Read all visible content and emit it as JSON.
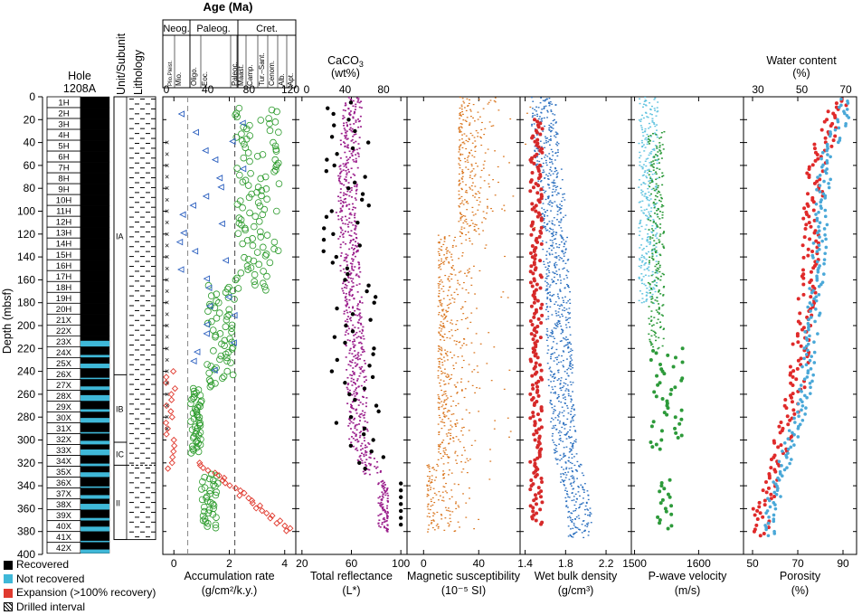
{
  "hole": {
    "title": "Hole",
    "name": "1208A"
  },
  "depth_axis": {
    "label": "Depth (mbsf)",
    "ticks": [
      0,
      20,
      40,
      60,
      80,
      100,
      120,
      140,
      160,
      180,
      200,
      220,
      240,
      260,
      280,
      300,
      320,
      340,
      360,
      380,
      400
    ],
    "ylim": [
      0,
      400
    ]
  },
  "headers": {
    "unit": "Unit/Subunit",
    "lithology": "Lithology",
    "age": "Age (Ma)"
  },
  "cores": [
    "1H",
    "2H",
    "3H",
    "4H",
    "5H",
    "6H",
    "7H",
    "8H",
    "9H",
    "10H",
    "11H",
    "12H",
    "13H",
    "14H",
    "15H",
    "16H",
    "17H",
    "18H",
    "19H",
    "20H",
    "21X",
    "22X",
    "23X",
    "24X",
    "25X",
    "26X",
    "27X",
    "28X",
    "29X",
    "30X",
    "31X",
    "32X",
    "33X",
    "34X",
    "35X",
    "36X",
    "37X",
    "38X",
    "39X",
    "40X",
    "41X",
    "42X"
  ],
  "units": [
    {
      "label": "IA",
      "top": 0,
      "bottom": 243
    },
    {
      "label": "IB",
      "top": 243,
      "bottom": 302
    },
    {
      "label": "IC",
      "top": 302,
      "bottom": 322
    },
    {
      "label": "II",
      "top": 322,
      "bottom": 387
    }
  ],
  "age_scale": {
    "ticks": [
      0,
      40,
      80,
      120
    ],
    "epochs": [
      "Neog.",
      "Paleog.",
      "Cret."
    ],
    "stages": [
      "Plio.Pleist.",
      "Mio.",
      "Oligo.",
      "Eoc.",
      "Paleoc.",
      "Maast.",
      "Camp.",
      "Tur.–Sant.",
      "Cenom.",
      "Alb.",
      "Apt."
    ]
  },
  "caco3": {
    "label_line1": "CaCO",
    "label_sub": "3",
    "label_line2": "(wt%)",
    "ticks": [
      0,
      40,
      80
    ]
  },
  "water": {
    "label_line1": "Water content",
    "label_line2": "(%)",
    "ticks": [
      30,
      50,
      70
    ]
  },
  "legend": [
    {
      "label": "Recovered",
      "color": "#000000"
    },
    {
      "label": "Not recovered",
      "color": "#3fb8d8"
    },
    {
      "label": "Expansion (>100% recovery)",
      "color": "#e03a2f"
    },
    {
      "label": "Drilled interval",
      "color": "hatch"
    }
  ],
  "colors": {
    "caco3": "#000000",
    "reflectance": "#9b1f8c",
    "magsus": "#d9731a",
    "density": "#2a6fbf",
    "velocity": "#2d9a3a",
    "velocity2": "#63c4e0",
    "porosity": "#e02a2a",
    "water": "#4aa8d8",
    "mar": "#2a9a2a",
    "nannofossil": "#2b5fbf"
  },
  "chart_data": [
    {
      "type": "scatter",
      "panel": "accumulation",
      "xlabel": "Accumulation rate",
      "xunit": "(g/cm²/k.y.)",
      "xticks": [
        0.0,
        2.0,
        4.0
      ],
      "xlim": [
        -0.4,
        4.4
      ],
      "series": [
        {
          "values": [
            [
              0.7,
              20
            ],
            [
              0.5,
              60
            ],
            [
              1.5,
              220
            ],
            [
              1.2,
              260
            ],
            [
              0.6,
              275
            ],
            [
              0.8,
              300
            ],
            [
              1.0,
              316
            ],
            [
              2.6,
              327
            ],
            [
              4.0,
              383
            ]
          ]
        }
      ]
    },
    {
      "type": "scatter",
      "panel": "reflectance",
      "xlabel": "Total reflectance",
      "xunit": "(L*)",
      "xticks": [
        20,
        60,
        100
      ],
      "xlim": [
        15,
        105
      ],
      "series": [
        {
          "values": [
            [
              60,
              10
            ],
            [
              55,
              100
            ],
            [
              62,
              200
            ],
            [
              65,
              300
            ],
            [
              90,
              360
            ]
          ]
        }
      ]
    },
    {
      "type": "scatter",
      "panel": "magsus",
      "xlabel": "Magnetic susceptibility",
      "xunit": "(10⁻⁵ SI)",
      "xticks": [
        0,
        40
      ],
      "xlim": [
        -12,
        70
      ],
      "series": [
        {
          "values": [
            [
              15,
              20
            ],
            [
              10,
              120
            ],
            [
              10,
              200
            ],
            [
              8,
              280
            ],
            [
              5,
              360
            ]
          ]
        }
      ]
    },
    {
      "type": "scatter",
      "panel": "density",
      "xlabel": "Wet bulk density",
      "xunit": "(g/cm³)",
      "xticks": [
        1.4,
        1.8,
        2.2
      ],
      "xlim": [
        1.35,
        2.45
      ],
      "series": [
        {
          "values": [
            [
              1.55,
              20
            ],
            [
              1.65,
              100
            ],
            [
              1.7,
              200
            ],
            [
              1.75,
              300
            ],
            [
              1.9,
              360
            ]
          ]
        }
      ]
    },
    {
      "type": "scatter",
      "panel": "velocity",
      "xlabel": "P-wave velocity",
      "xunit": "(m/s)",
      "xticks": [
        1500,
        1600
      ],
      "xlim": [
        1495,
        1670
      ],
      "series": [
        {
          "values": [
            [
              1520,
              20
            ],
            [
              1525,
              120
            ],
            [
              1535,
              220
            ],
            [
              1545,
              300
            ],
            [
              1540,
              360
            ]
          ]
        }
      ]
    },
    {
      "type": "scatter",
      "panel": "porosity",
      "xlabel": "Porosity",
      "xunit": "(%)",
      "xticks": [
        50,
        70,
        90
      ],
      "xlim": [
        46,
        96
      ],
      "series": [
        {
          "values": [
            [
              88,
              5
            ],
            [
              78,
              60
            ],
            [
              75,
              150
            ],
            [
              70,
              250
            ],
            [
              62,
              310
            ],
            [
              54,
              360
            ]
          ]
        }
      ]
    }
  ]
}
